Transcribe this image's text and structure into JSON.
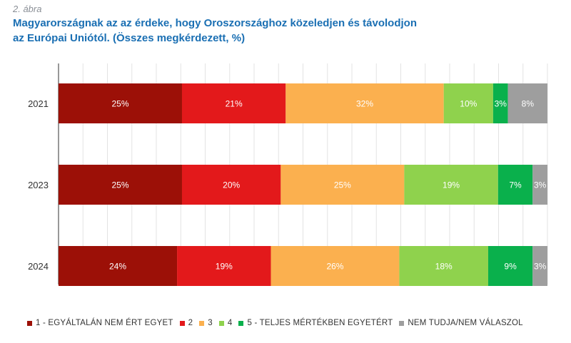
{
  "figure_label": "2. ábra",
  "title_line1": "Magyarországnak az az érdeke, hogy Oroszországhoz közeledjen és távolodjon",
  "title_line2": "az Európai Uniótól. (Összes megkérdezett, %)",
  "colors": [
    "#9c1007",
    "#e3191b",
    "#fbb04f",
    "#8fd24d",
    "#0ab04c",
    "#9e9e9e"
  ],
  "chart_data": {
    "type": "bar",
    "orientation": "horizontal",
    "stacked": "percent",
    "categories": [
      "2021",
      "2023",
      "2024"
    ],
    "series": [
      {
        "name": "1 - EGYÁLTALÁN NEM ÉRT EGYET",
        "values": [
          25,
          25,
          24
        ],
        "labels": [
          "25%",
          "25%",
          "24%"
        ]
      },
      {
        "name": "2",
        "values": [
          21,
          20,
          19
        ],
        "labels": [
          "21%",
          "20%",
          "19%"
        ]
      },
      {
        "name": "3",
        "values": [
          32,
          25,
          26
        ],
        "labels": [
          "32%",
          "25%",
          "26%"
        ]
      },
      {
        "name": "4",
        "values": [
          10,
          19,
          18
        ],
        "labels": [
          "10%",
          "19%",
          "18%"
        ]
      },
      {
        "name": "5 - TELJES MÉRTÉKBEN EGYETÉRT",
        "values": [
          3,
          7,
          9
        ],
        "labels": [
          "3%",
          "7%",
          "9%"
        ]
      },
      {
        "name": "NEM TUDJA/NEM VÁLASZOL",
        "values": [
          8,
          3,
          3
        ],
        "labels": [
          "8%",
          "3%",
          "3%"
        ]
      }
    ],
    "xlim": [
      0,
      100
    ],
    "grid": true,
    "legend_position": "bottom"
  }
}
